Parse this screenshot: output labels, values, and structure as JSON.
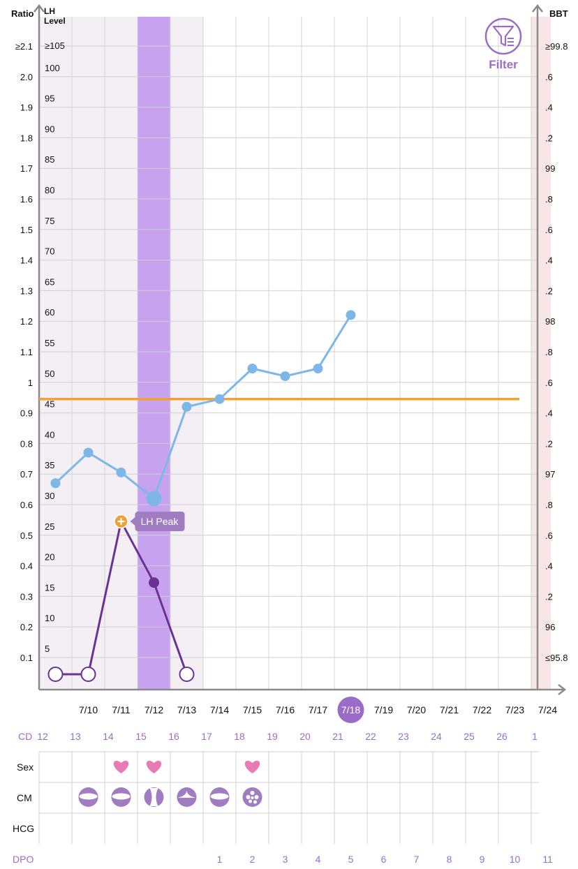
{
  "header": {
    "ratio_label": "Ratio",
    "lh_label_line1": "LH",
    "lh_label_line2": "Level",
    "bbt_label": "BBT"
  },
  "filter": {
    "label": "Filter",
    "icon": "filter-icon"
  },
  "axes": {
    "ratio_ticks": [
      "≥2.1",
      "2.0",
      "1.9",
      "1.8",
      "1.7",
      "1.6",
      "1.5",
      "1.4",
      "1.3",
      "1.2",
      "1.1",
      "1",
      "0.9",
      "0.8",
      "0.7",
      "0.6",
      "0.5",
      "0.4",
      "0.3",
      "0.2",
      "0.1"
    ],
    "lh_ticks": [
      "≥105",
      "100",
      "95",
      "90",
      "85",
      "80",
      "75",
      "70",
      "65",
      "60",
      "55",
      "50",
      "45",
      "40",
      "35",
      "30",
      "25",
      "20",
      "15",
      "10",
      "5"
    ],
    "bbt_ticks": [
      "≥99.8",
      ".6",
      ".4",
      ".2",
      "99",
      ".8",
      ".6",
      ".4",
      ".2",
      "98",
      ".8",
      ".6",
      ".4",
      ".2",
      "97",
      ".8",
      ".6",
      ".4",
      ".2",
      "96",
      "≤95.8"
    ]
  },
  "chart_data": {
    "type": "line",
    "dates": [
      "7/10",
      "7/11",
      "7/12",
      "7/13",
      "7/14",
      "7/15",
      "7/16",
      "7/17",
      "7/18",
      "7/19",
      "7/20",
      "7/21",
      "7/22",
      "7/23",
      "7/24"
    ],
    "selected_date": "7/18",
    "bbt_series": {
      "dates": [
        "7/9",
        "7/10",
        "7/11",
        "7/12",
        "7/13",
        "7/14",
        "7/15",
        "7/16",
        "7/17",
        "7/18"
      ],
      "values": [
        97.05,
        97.25,
        97.12,
        96.95,
        97.55,
        97.6,
        97.8,
        97.75,
        97.8,
        98.15
      ]
    },
    "lh_series": {
      "dates": [
        "7/9",
        "7/10",
        "7/11",
        "7/12",
        "7/13"
      ],
      "ratio": [
        0,
        0,
        0.5,
        0.3,
        0
      ],
      "peak_date": "7/11",
      "peak_label": "LH Peak"
    },
    "coverline_ratio": 0.9,
    "fertile_window": [
      "7/9",
      "7/13"
    ],
    "ovulation_date": "7/12",
    "period_date": "7/24",
    "colors": {
      "bbt": "#7db7e8",
      "lh": "#6a3393",
      "lh_peak": "#f0a136",
      "coverline": "#f0a136",
      "fertile": "#f4eef5",
      "ovulation": "#c7a3ef",
      "period": "#f6e6e6",
      "accent": "#9b6cc7"
    }
  },
  "cycle": {
    "cd_label": "CD",
    "cd": [
      "12",
      "13",
      "14",
      "15",
      "16",
      "17",
      "18",
      "19",
      "20",
      "21",
      "22",
      "23",
      "24",
      "25",
      "26",
      "1"
    ],
    "dpo_label": "DPO",
    "dpo": [
      "",
      "",
      "",
      "",
      "1",
      "2",
      "3",
      "4",
      "5",
      "6",
      "7",
      "8",
      "9",
      "10",
      "11"
    ]
  },
  "rows": {
    "sex_label": "Sex",
    "cm_label": "CM",
    "hcg_label": "HCG",
    "sex_dates": [
      "7/11",
      "7/12",
      "7/15"
    ],
    "cm": [
      {
        "date": "7/10",
        "icon": "creamy-cm-icon"
      },
      {
        "date": "7/11",
        "icon": "creamy-cm-icon"
      },
      {
        "date": "7/12",
        "icon": "egg-white-cm-icon"
      },
      {
        "date": "7/13",
        "icon": "watery-cm-icon"
      },
      {
        "date": "7/14",
        "icon": "creamy-cm-icon"
      },
      {
        "date": "7/15",
        "icon": "sticky-cm-icon"
      }
    ]
  }
}
